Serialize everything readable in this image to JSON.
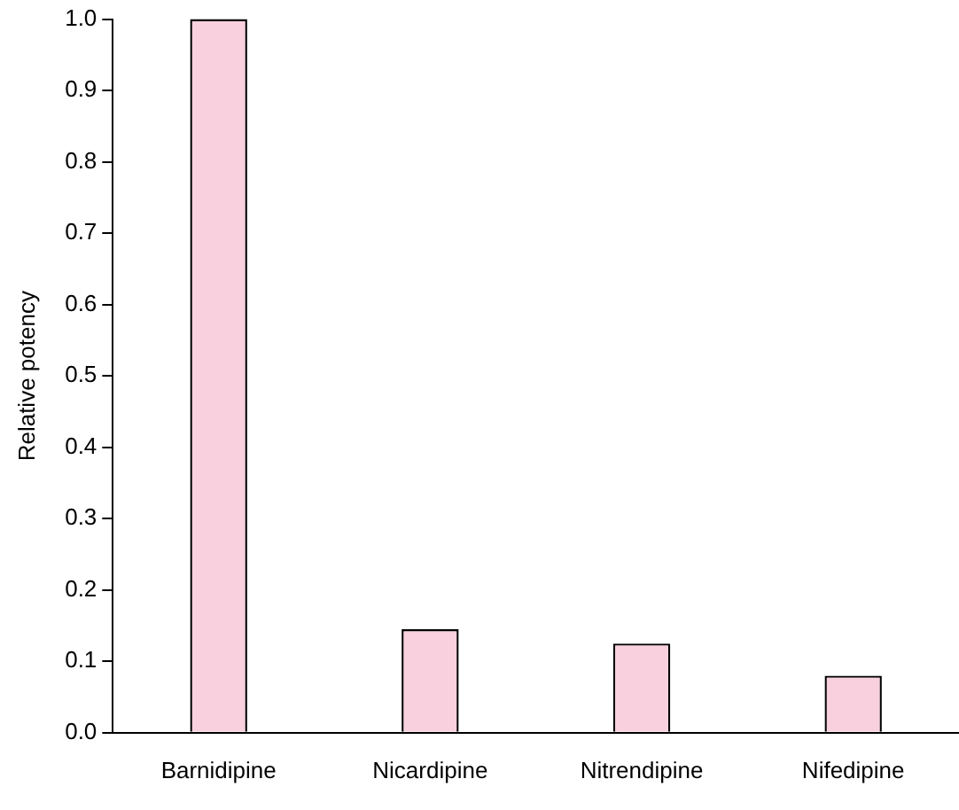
{
  "chart_data": {
    "type": "bar",
    "ylabel": "Relative potency",
    "categories": [
      "Barnidipine",
      "Nicardipine",
      "Nitrendipine",
      "Nifedipine"
    ],
    "values": [
      1.0,
      0.145,
      0.125,
      0.08
    ],
    "color": "#f9d0de",
    "ylim": [
      0,
      1.0
    ],
    "yticks": [
      {
        "value": 0,
        "label": "0.0"
      },
      0.1,
      0.2,
      0.3,
      0.4,
      0.5,
      0.6,
      0.7,
      0.8,
      0.9,
      {
        "value": 1,
        "label": "1.0"
      }
    ],
    "grid": false,
    "legend": false
  }
}
